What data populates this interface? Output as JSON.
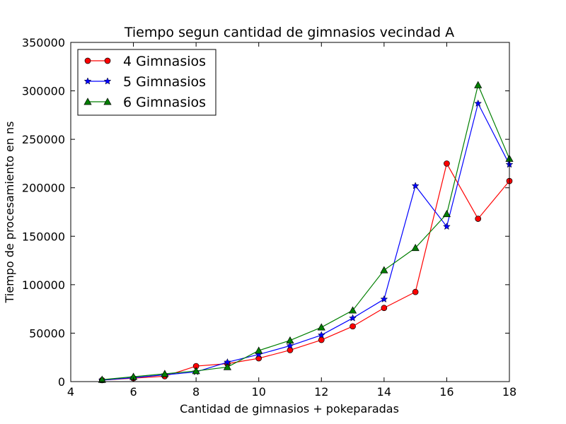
{
  "chart_data": {
    "type": "line",
    "title": "Tiempo segun cantidad de gimnasios vecindad A",
    "xlabel": "Cantidad de gimnasios + pokeparadas",
    "ylabel": "Tiempo de procesamiento en ns",
    "xlim": [
      4,
      18
    ],
    "ylim": [
      0,
      350000
    ],
    "xticks": [
      "4",
      "6",
      "8",
      "10",
      "12",
      "14",
      "16",
      "18"
    ],
    "yticks": [
      "0",
      "50000",
      "100000",
      "150000",
      "200000",
      "250000",
      "300000",
      "350000"
    ],
    "grid": false,
    "legend_position": "top-left",
    "series": [
      {
        "name": "4 Gimnasios",
        "color": "#ff0000",
        "marker": "circle",
        "x": [
          5,
          6,
          7,
          8,
          9,
          10,
          11,
          12,
          13,
          14,
          15,
          16,
          17,
          18
        ],
        "y": [
          1500,
          3500,
          5500,
          16000,
          18500,
          24000,
          32500,
          43000,
          57000,
          76000,
          92500,
          225000,
          168000,
          207000
        ]
      },
      {
        "name": "5 Gimnasios",
        "color": "#0000ff",
        "marker": "star",
        "x": [
          5,
          6,
          7,
          8,
          9,
          10,
          11,
          12,
          13,
          14,
          15,
          16,
          17,
          18
        ],
        "y": [
          1500,
          4000,
          7000,
          10000,
          20000,
          28000,
          37000,
          48000,
          65500,
          85000,
          202000,
          160000,
          287000,
          224000
        ]
      },
      {
        "name": "6 Gimnasios",
        "color": "#007f00",
        "marker": "triangle",
        "x": [
          5,
          6,
          7,
          8,
          9,
          10,
          11,
          12,
          13,
          14,
          15,
          16,
          17,
          18
        ],
        "y": [
          2000,
          5000,
          8000,
          11000,
          15000,
          32000,
          42500,
          56000,
          73500,
          115000,
          138000,
          173000,
          306000,
          230000
        ]
      }
    ]
  }
}
